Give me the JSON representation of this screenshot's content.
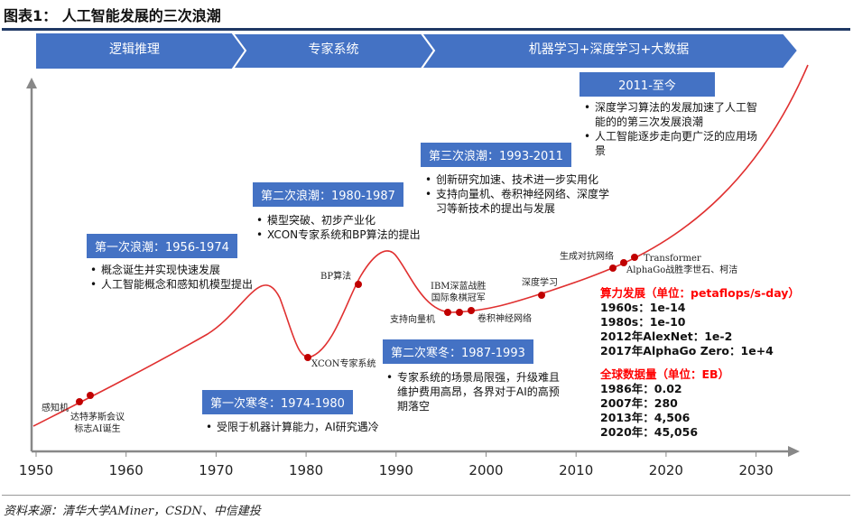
{
  "title": "图表1：  人工智能发展的三次浪潮",
  "phases": [
    "逻辑推理",
    "专家系统",
    "机器学习+深度学习+大数据"
  ],
  "boxes": [
    {
      "title": "第一次浪潮：1956-1974",
      "bullets": [
        "概念诞生并实现快速发展",
        "人工智能概念和感知机模型提出"
      ]
    },
    {
      "title": "第一次寒冬：1974-1980",
      "bullets": [
        "受限于机器计算能力，AI研究遇冷"
      ]
    },
    {
      "title": "第二次浪潮：1980-1987",
      "bullets": [
        "模型突破、初步产业化",
        "XCON专家系统和BP算法的提出"
      ]
    },
    {
      "title": "第二次寒冬：1987-1993",
      "bullets": [
        "专家系统的场景局限强，升级难且维护费用高昂，各界对于AI的高预期落空"
      ]
    },
    {
      "title": "第三次浪潮：1993-2011",
      "bullets": [
        "创新研究加速、技术进一步实用化",
        "支持向量机、卷积神经网络、深度学习等新技术的提出与发展"
      ]
    },
    {
      "title": "2011-至今",
      "bullets": [
        "深度学习算法的发展加速了人工智能的的第三次发展浪潮",
        "人工智能逐步走向更广泛的应用场景"
      ]
    }
  ],
  "milestones": {
    "perceptron": "感知机",
    "dartmouth": "达特茅斯会议\n标志AI诞生",
    "xcon": "XCON专家系统",
    "bp": "BP算法",
    "deepblue": "IBM深蓝战胜\n国际象棋冠军",
    "svm": "支持向量机",
    "cnn": "卷积神经网络",
    "dl": "深度学习",
    "gan": "生成对抗网络",
    "transformer": "Transformer",
    "alphago": "AlphaGo战胜李世石、柯洁"
  },
  "compute": {
    "heading": "算力发展（单位：petaflops/s-day）",
    "rows": [
      "1960s：1e-14",
      "1980s：1e-10",
      "2012年AlexNet：1e-2",
      "2017年AlphaGo Zero：1e+4"
    ]
  },
  "datavol": {
    "heading": "全球数据量（单位：EB）",
    "rows": [
      "1986年：0.02",
      "2007年：280",
      "2013年：4,506",
      "2020年：45,056"
    ]
  },
  "axis_ticks": [
    "1950",
    "1960",
    "1970",
    "1980",
    "1990",
    "2000",
    "2010",
    "2020",
    "2030"
  ],
  "footer": "资料来源：清华大学AMiner，CSDN、中信建投",
  "colors": {
    "box": "#4472c4",
    "curve": "#e03030",
    "dot": "#c00000",
    "highlight": "#ff0000"
  }
}
